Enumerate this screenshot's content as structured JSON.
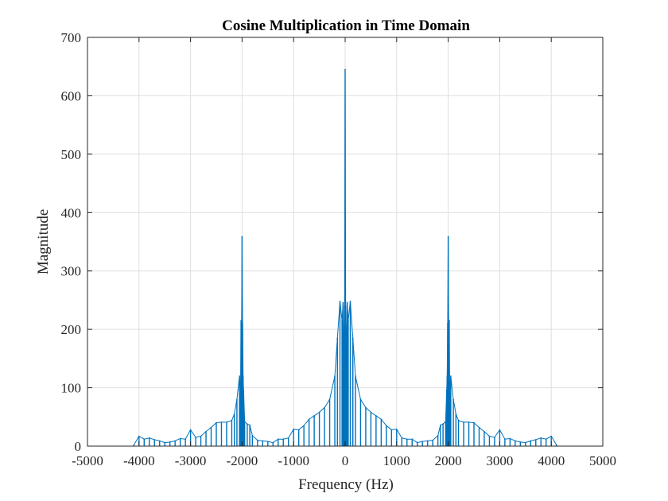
{
  "chart_data": {
    "type": "line",
    "title": "Cosine Multiplication in Time Domain",
    "xlabel": "Frequency (Hz)",
    "ylabel": "Magnitude",
    "xlim": [
      -5000,
      5000
    ],
    "ylim": [
      0,
      700
    ],
    "xticks": [
      -5000,
      -4000,
      -3000,
      -2000,
      -1000,
      0,
      1000,
      2000,
      3000,
      4000,
      5000
    ],
    "yticks": [
      0,
      100,
      200,
      300,
      400,
      500,
      600,
      700
    ],
    "xtick_labels": [
      "-5000",
      "-4000",
      "-3000",
      "-2000",
      "-1000",
      "0",
      "1000",
      "2000",
      "3000",
      "4000",
      "5000"
    ],
    "ytick_labels": [
      "0",
      "100",
      "200",
      "300",
      "400",
      "500",
      "600",
      "700"
    ],
    "grid": true,
    "series_color": "#0072BD",
    "series": [
      {
        "x": [
          -4100,
          -4000,
          -3900,
          -3800,
          -3700,
          -3600,
          -3500,
          -3400,
          -3300,
          -3200,
          -3100,
          -3000,
          -2900,
          -2800,
          -2700,
          -2600,
          -2500,
          -2400,
          -2300,
          -2200,
          -2150,
          -2100,
          -2050,
          -2030,
          -2020,
          -2010,
          -2000,
          -1990,
          -1980,
          -1970,
          -1950,
          -1900,
          -1850,
          -1800,
          -1700,
          -1600,
          -1500,
          -1400,
          -1300,
          -1200,
          -1100,
          -1000,
          -900,
          -800,
          -700,
          -600,
          -500,
          -400,
          -300,
          -200,
          -150,
          -100,
          -60,
          -40,
          -30,
          -20,
          -10,
          0,
          10,
          20,
          30,
          40,
          60,
          100,
          150,
          200,
          300,
          400,
          500,
          600,
          700,
          800,
          900,
          1000,
          1100,
          1200,
          1300,
          1400,
          1500,
          1600,
          1700,
          1800,
          1850,
          1900,
          1950,
          1970,
          1980,
          1990,
          2000,
          2010,
          2020,
          2030,
          2050,
          2100,
          2150,
          2200,
          2300,
          2400,
          2500,
          2600,
          2700,
          2800,
          2900,
          3000,
          3100,
          3200,
          3300,
          3400,
          3500,
          3600,
          3700,
          3800,
          3900,
          4000,
          4100
        ],
        "y": [
          2,
          17,
          12,
          14,
          11,
          9,
          6,
          7,
          9,
          13,
          12,
          28,
          15,
          17,
          25,
          32,
          40,
          41,
          41,
          44,
          55,
          80,
          120,
          90,
          215,
          200,
          359,
          210,
          120,
          95,
          42,
          38,
          36,
          18,
          10,
          9,
          8,
          6,
          12,
          12,
          14,
          29,
          28,
          35,
          46,
          52,
          58,
          66,
          80,
          120,
          185,
          248,
          215,
          246,
          180,
          190,
          240,
          645,
          240,
          190,
          180,
          246,
          215,
          248,
          185,
          120,
          80,
          66,
          58,
          52,
          46,
          35,
          28,
          29,
          14,
          12,
          12,
          6,
          8,
          9,
          10,
          18,
          36,
          38,
          42,
          95,
          120,
          210,
          359,
          200,
          215,
          90,
          120,
          80,
          55,
          44,
          41,
          41,
          40,
          32,
          25,
          17,
          15,
          28,
          12,
          13,
          9,
          7,
          6,
          9,
          11,
          14,
          12,
          17,
          2
        ]
      }
    ]
  }
}
